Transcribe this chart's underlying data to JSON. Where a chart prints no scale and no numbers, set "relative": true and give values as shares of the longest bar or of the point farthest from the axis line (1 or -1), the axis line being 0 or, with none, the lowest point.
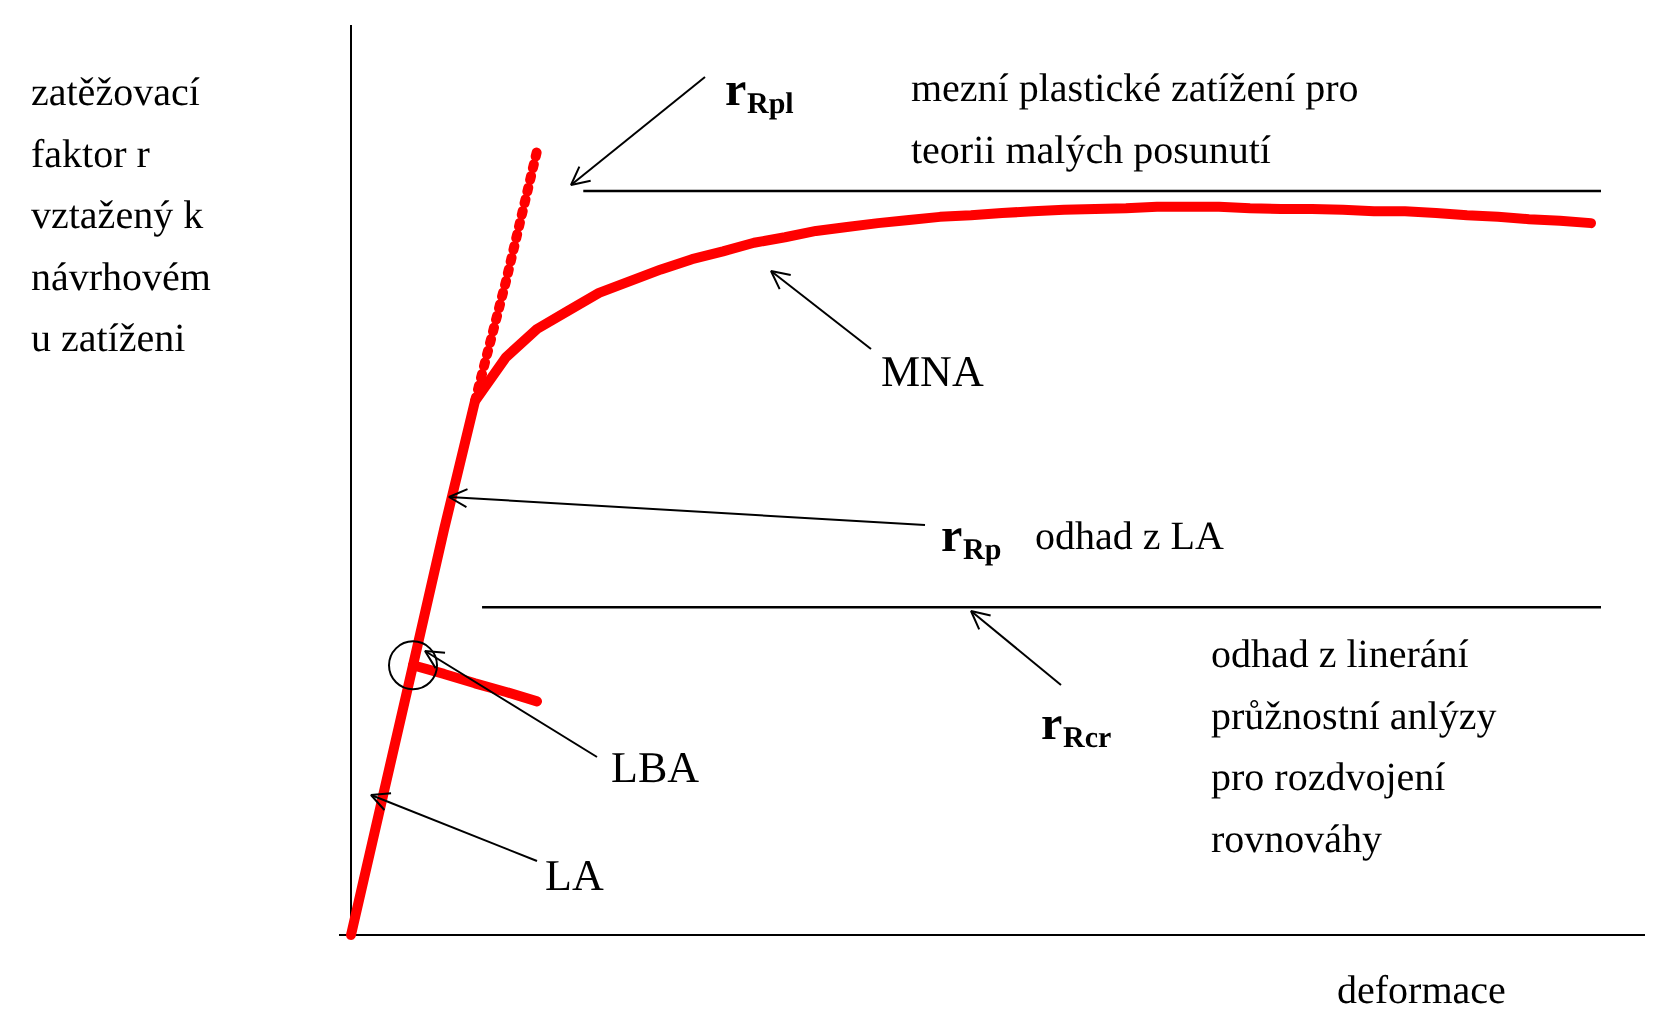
{
  "chart_data": {
    "type": "line",
    "relative": true,
    "xlabel": "deformace",
    "ylabel": "zatěžovací\nfaktor r\nvztažený k\nnávrhovém\nu zatíženi",
    "categories": [
      null,
      null,
      null,
      null,
      null,
      null,
      null,
      null,
      null,
      null,
      null,
      null,
      null,
      null,
      null,
      null,
      null,
      null,
      null,
      null,
      null,
      null,
      null,
      null,
      null,
      null,
      null,
      null,
      null,
      null,
      null,
      null,
      null,
      null,
      null,
      null,
      null,
      null,
      null,
      null,
      null
    ],
    "series": [
      {
        "color": "#ff0000",
        "line_style": "solid",
        "values": [
          0,
          0.172,
          0.344,
          0.517,
          0.681,
          0.737,
          0.773,
          0.796,
          0.819,
          0.834,
          0.849,
          0.862,
          0.872,
          0.883,
          0.89,
          0.898,
          0.903,
          0.908,
          0.912,
          0.916,
          0.918,
          0.921,
          0.923,
          0.925,
          0.926,
          0.927,
          0.929,
          0.929,
          0.929,
          0.927,
          0.926,
          0.926,
          0.925,
          0.923,
          0.923,
          0.921,
          0.918,
          0.916,
          0.913,
          0.911,
          0.908
        ]
      },
      {
        "color": "#ff0000",
        "line_style": "dotted",
        "values": [
          null,
          null,
          null,
          null,
          0.681,
          0.834,
          1.0,
          null,
          null,
          null,
          null,
          null,
          null,
          null,
          null,
          null,
          null,
          null,
          null,
          null,
          null,
          null,
          null,
          null,
          null,
          null,
          null,
          null,
          null,
          null,
          null,
          null,
          null,
          null,
          null,
          null,
          null,
          null,
          null,
          null,
          null
        ]
      },
      {
        "color": "#ff0000",
        "line_style": "solid",
        "values": [
          null,
          null,
          0.344,
          0.333,
          0.321,
          0.31,
          0.298,
          null,
          null,
          null,
          null,
          null,
          null,
          null,
          null,
          null,
          null,
          null,
          null,
          null,
          null,
          null,
          null,
          null,
          null,
          null,
          null,
          null,
          null,
          null,
          null,
          null,
          null,
          null,
          null,
          null,
          null,
          null,
          null,
          null,
          null
        ]
      }
    ],
    "ref_lines": [
      {
        "axis": "y",
        "value": 0.949,
        "color": "#000000"
      },
      {
        "axis": "y",
        "value": 0.418,
        "color": "#000000"
      }
    ],
    "annotations": [
      "r$_{Rpl}$ mezní plastické zatížení pro\nteorii malých posunutí",
      "MNA",
      "r$_{Rp}$ odhad z LA",
      "r$_{Rcr}$ odhad z linerání\nprůžnostní anlýzy\npro rozdvojení\nrovnováhy",
      "LBA",
      "LA"
    ]
  }
}
